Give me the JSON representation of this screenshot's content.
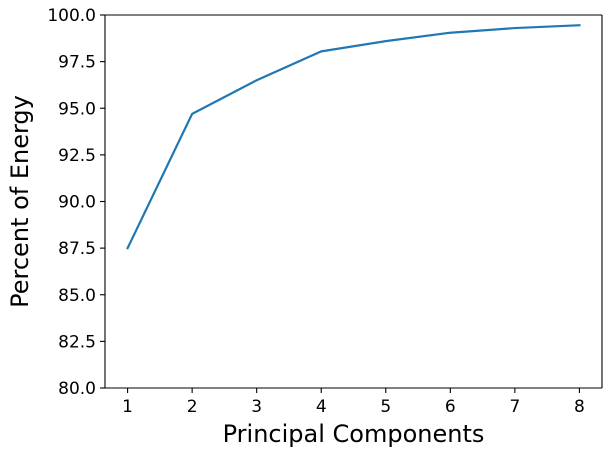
{
  "chart_data": {
    "type": "line",
    "xlabel": "Principal Components",
    "ylabel": "Percent of Energy",
    "xlim": [
      0.65,
      8.35
    ],
    "ylim": [
      80.0,
      100.0
    ],
    "xticks": [
      1,
      2,
      3,
      4,
      5,
      6,
      7,
      8
    ],
    "xtick_labels": [
      "1",
      "2",
      "3",
      "4",
      "5",
      "6",
      "7",
      "8"
    ],
    "yticks": [
      80.0,
      82.5,
      85.0,
      87.5,
      90.0,
      92.5,
      95.0,
      97.5,
      100.0
    ],
    "ytick_labels": [
      "80.0",
      "82.5",
      "85.0",
      "87.5",
      "90.0",
      "92.5",
      "95.0",
      "97.5",
      "100.0"
    ],
    "grid": false,
    "series": [
      {
        "x": [
          1,
          2,
          3,
          4,
          5,
          6,
          7,
          8
        ],
        "values": [
          87.5,
          94.7,
          96.5,
          98.05,
          98.6,
          99.05,
          99.3,
          99.45
        ],
        "color": "#1f77b4"
      }
    ]
  }
}
